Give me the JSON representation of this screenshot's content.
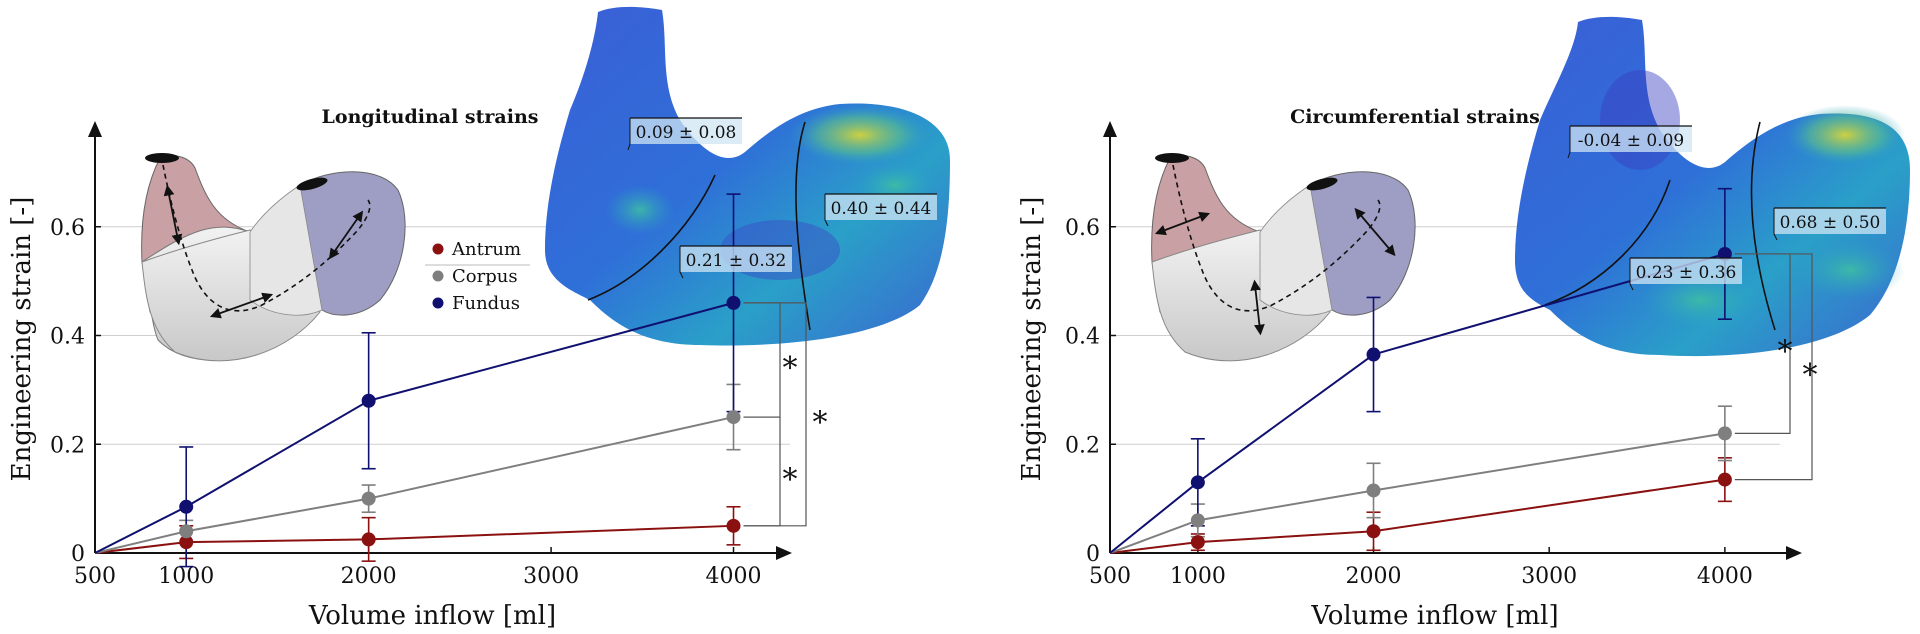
{
  "colors": {
    "antrum": "#8b1010",
    "corpus": "#7f7f7f",
    "fundus": "#101070"
  },
  "legend": {
    "items": [
      {
        "key": "antrum",
        "label": "Antrum"
      },
      {
        "key": "corpus",
        "label": "Corpus"
      },
      {
        "key": "fundus",
        "label": "Fundus"
      }
    ]
  },
  "significance_mark": "*",
  "chart_data": [
    {
      "type": "line",
      "title": "Longitudinal strains",
      "xlabel": "Volume inflow [ml]",
      "ylabel": "Engineering strain [-]",
      "xlim": [
        500,
        4200
      ],
      "ylim": [
        0,
        0.8
      ],
      "x_ticks": [
        500,
        1000,
        2000,
        3000,
        4000
      ],
      "y_ticks": [
        0,
        0.2,
        0.4,
        0.6
      ],
      "x_tick_labels": [
        "500",
        "1000",
        "2000",
        "3000",
        "4000"
      ],
      "y_tick_labels": [
        "0",
        "0.2",
        "0.4",
        "0.6"
      ],
      "grid": "horizontal",
      "series": [
        {
          "name": "Antrum",
          "key": "antrum",
          "x": [
            500,
            1000,
            2000,
            4000
          ],
          "y": [
            0,
            0.02,
            0.025,
            0.05
          ],
          "err": [
            null,
            0.03,
            0.04,
            0.035
          ]
        },
        {
          "name": "Corpus",
          "key": "corpus",
          "x": [
            500,
            1000,
            2000,
            4000
          ],
          "y": [
            0,
            0.04,
            0.1,
            0.25
          ],
          "err": [
            null,
            0.02,
            0.025,
            0.06
          ]
        },
        {
          "name": "Fundus",
          "key": "fundus",
          "x": [
            500,
            1000,
            2000,
            4000
          ],
          "y": [
            0,
            0.085,
            0.28,
            0.46
          ],
          "err": [
            null,
            0.11,
            0.125,
            0.2
          ]
        }
      ],
      "annotations": [
        "0.09 ± 0.08",
        "0.21 ± 0.32",
        "0.40 ± 0.44"
      ]
    },
    {
      "type": "line",
      "title": "Circumferential strains",
      "xlabel": "Volume inflow [ml]",
      "ylabel": "Engineering strain [-]",
      "xlim": [
        500,
        4200
      ],
      "ylim": [
        0,
        0.8
      ],
      "x_ticks": [
        500,
        1000,
        2000,
        3000,
        4000
      ],
      "y_ticks": [
        0,
        0.2,
        0.4,
        0.6
      ],
      "x_tick_labels": [
        "500",
        "1000",
        "2000",
        "3000",
        "4000"
      ],
      "y_tick_labels": [
        "0",
        "0.2",
        "0.4",
        "0.6"
      ],
      "grid": "horizontal",
      "series": [
        {
          "name": "Antrum",
          "key": "antrum",
          "x": [
            500,
            1000,
            2000,
            4000
          ],
          "y": [
            0,
            0.02,
            0.04,
            0.135
          ],
          "err": [
            null,
            0.015,
            0.035,
            0.04
          ]
        },
        {
          "name": "Corpus",
          "key": "corpus",
          "x": [
            500,
            1000,
            2000,
            4000
          ],
          "y": [
            0,
            0.06,
            0.115,
            0.22
          ],
          "err": [
            null,
            0.03,
            0.05,
            0.05
          ]
        },
        {
          "name": "Fundus",
          "key": "fundus",
          "x": [
            500,
            1000,
            2000,
            4000
          ],
          "y": [
            0,
            0.13,
            0.365,
            0.55
          ],
          "err": [
            null,
            0.08,
            0.105,
            0.12
          ]
        }
      ],
      "annotations": [
        "-0.04 ± 0.09",
        "0.23 ± 0.36",
        "0.68 ± 0.50"
      ]
    }
  ]
}
